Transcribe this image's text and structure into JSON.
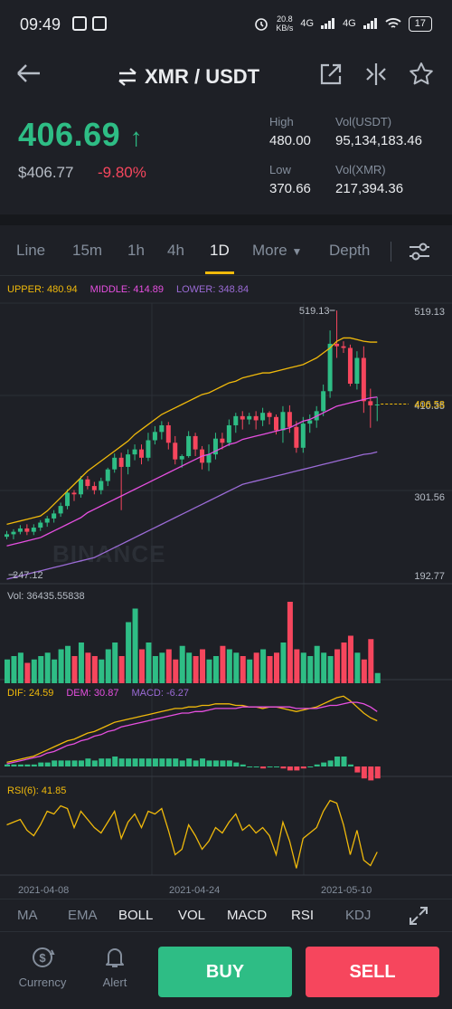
{
  "status_bar": {
    "time": "09:49",
    "net_speed_value": "20.8",
    "net_speed_unit": "KB/s",
    "signal_1": "4G",
    "signal_2": "4G",
    "battery": "17"
  },
  "header": {
    "pair": "XMR / USDT"
  },
  "ticker": {
    "last_price": "406.69",
    "fiat_price": "$406.77",
    "change_pct": "-9.80%",
    "high_label": "High",
    "high": "480.00",
    "vol_usdt_label": "Vol(USDT)",
    "vol_usdt": "95,134,183.46",
    "low_label": "Low",
    "low": "370.66",
    "vol_xmr_label": "Vol(XMR)",
    "vol_xmr": "217,394.36"
  },
  "tabs": {
    "line": "Line",
    "m15": "15m",
    "h1": "1h",
    "h4": "4h",
    "d1": "1D",
    "more": "More",
    "depth": "Depth",
    "active": "1D"
  },
  "boll_legend": {
    "upper": "UPPER: 480.94",
    "middle": "MIDDLE: 414.89",
    "lower": "LOWER: 348.84"
  },
  "price_axis": {
    "top": "519.13",
    "current": "406.58",
    "mid": "410.35",
    "lower": "301.56",
    "bottom": "192.77",
    "max_mark": "519.13",
    "min_mark": "247.12"
  },
  "watermark": "BINANCE",
  "vol_legend": {
    "vol": "Vol: 36435.55838"
  },
  "macd_legend": {
    "dif": "DIF: 24.59",
    "dem": "DEM: 30.87",
    "macd": "MACD: -6.27"
  },
  "rsi_legend": {
    "rsi": "RSI(6): 41.85"
  },
  "dates": {
    "d1": "2021-04-08",
    "d2": "2021-04-24",
    "d3": "2021-05-10"
  },
  "indicators": {
    "ma": "MA",
    "ema": "EMA",
    "boll": "BOLL",
    "vol": "VOL",
    "macd": "MACD",
    "rsi": "RSI",
    "kdj": "KDJ"
  },
  "bottom": {
    "currency": "Currency",
    "alert": "Alert",
    "buy": "BUY",
    "sell": "SELL"
  },
  "colors": {
    "up": "#2ebd85",
    "down": "#f6465d",
    "accent": "#f0b90b",
    "upper": "#f0b90b",
    "middle": "#e64fe0",
    "lower": "#9b6bd6"
  },
  "chart_data": {
    "type": "candlestick",
    "ylim": [
      192.77,
      519.13
    ],
    "current_price": 406.58,
    "candles": [
      [
        247,
        250,
        244,
        254
      ],
      [
        250,
        253,
        244,
        256
      ],
      [
        253,
        257,
        250,
        261
      ],
      [
        257,
        253,
        249,
        262
      ],
      [
        253,
        258,
        249,
        262
      ],
      [
        258,
        264,
        254,
        267
      ],
      [
        264,
        269,
        259,
        272
      ],
      [
        269,
        275,
        264,
        279
      ],
      [
        275,
        284,
        271,
        288
      ],
      [
        284,
        300,
        280,
        304
      ],
      [
        300,
        298,
        290,
        303
      ],
      [
        298,
        316,
        294,
        320
      ],
      [
        316,
        308,
        304,
        320
      ],
      [
        308,
        303,
        298,
        313
      ],
      [
        303,
        314,
        298,
        318
      ],
      [
        314,
        328,
        308,
        330
      ],
      [
        328,
        342,
        324,
        347
      ],
      [
        342,
        331,
        279,
        348
      ],
      [
        331,
        346,
        322,
        352
      ],
      [
        346,
        352,
        339,
        358
      ],
      [
        352,
        342,
        334,
        358
      ],
      [
        342,
        363,
        338,
        372
      ],
      [
        363,
        373,
        358,
        380
      ],
      [
        373,
        381,
        364,
        386
      ],
      [
        381,
        360,
        352,
        385
      ],
      [
        360,
        340,
        334,
        368
      ],
      [
        340,
        344,
        330,
        346
      ],
      [
        344,
        368,
        342,
        374
      ],
      [
        368,
        352,
        344,
        372
      ],
      [
        352,
        336,
        328,
        356
      ],
      [
        336,
        346,
        326,
        358
      ],
      [
        346,
        365,
        340,
        372
      ],
      [
        365,
        360,
        352,
        372
      ],
      [
        360,
        381,
        356,
        388
      ],
      [
        381,
        392,
        372,
        396
      ],
      [
        392,
        388,
        376,
        398
      ],
      [
        388,
        392,
        382,
        396
      ],
      [
        392,
        387,
        376,
        398
      ],
      [
        387,
        396,
        380,
        402
      ],
      [
        396,
        391,
        382,
        398
      ],
      [
        391,
        375,
        370,
        394
      ],
      [
        375,
        397,
        360,
        404
      ],
      [
        397,
        379,
        372,
        405
      ],
      [
        379,
        354,
        348,
        386
      ],
      [
        354,
        383,
        348,
        391
      ],
      [
        383,
        387,
        372,
        394
      ],
      [
        387,
        398,
        378,
        404
      ],
      [
        398,
        422,
        392,
        430
      ],
      [
        422,
        479,
        414,
        495
      ],
      [
        479,
        476,
        462,
        519
      ],
      [
        476,
        474,
        468,
        482
      ],
      [
        474,
        431,
        428,
        478
      ],
      [
        431,
        462,
        424,
        470
      ],
      [
        462,
        410,
        396,
        476
      ],
      [
        410,
        405,
        378,
        425
      ],
      [
        405,
        406,
        386,
        415
      ]
    ],
    "boll_upper": [
      262,
      264,
      266,
      268,
      270,
      272,
      278,
      286,
      294,
      302,
      310,
      318,
      326,
      332,
      338,
      344,
      350,
      356,
      362,
      370,
      376,
      382,
      388,
      394,
      398,
      402,
      406,
      410,
      414,
      418,
      420,
      424,
      428,
      432,
      434,
      438,
      440,
      442,
      444,
      444,
      446,
      448,
      450,
      452,
      454,
      458,
      462,
      468,
      474,
      482,
      486,
      486,
      484,
      482,
      481,
      481
    ],
    "boll_middle": [
      236,
      238,
      240,
      242,
      244,
      246,
      250,
      254,
      258,
      262,
      266,
      270,
      276,
      280,
      284,
      288,
      292,
      296,
      300,
      304,
      308,
      312,
      316,
      320,
      324,
      328,
      332,
      336,
      340,
      344,
      346,
      350,
      354,
      358,
      360,
      364,
      366,
      368,
      370,
      372,
      374,
      376,
      378,
      382,
      386,
      388,
      392,
      396,
      400,
      404,
      406,
      408,
      410,
      412,
      414,
      415
    ],
    "boll_lower": [
      196,
      198,
      200,
      202,
      204,
      206,
      208,
      210,
      212,
      214,
      216,
      218,
      220,
      222,
      226,
      230,
      234,
      238,
      242,
      246,
      250,
      254,
      258,
      262,
      266,
      270,
      274,
      278,
      282,
      286,
      290,
      294,
      298,
      302,
      306,
      310,
      312,
      314,
      316,
      318,
      320,
      322,
      324,
      326,
      328,
      330,
      332,
      334,
      336,
      338,
      340,
      342,
      344,
      346,
      347,
      349
    ],
    "volume": [
      7,
      8,
      9,
      6,
      7,
      8,
      9,
      7,
      10,
      11,
      8,
      12,
      9,
      8,
      7,
      10,
      12,
      8,
      18,
      22,
      10,
      12,
      8,
      9,
      10,
      7,
      11,
      9,
      8,
      10,
      7,
      8,
      11,
      10,
      9,
      8,
      7,
      9,
      10,
      8,
      9,
      12,
      24,
      10,
      9,
      8,
      11,
      9,
      8,
      10,
      12,
      14,
      9,
      7,
      13,
      3
    ],
    "dif": [
      -2,
      -1,
      0,
      1,
      2,
      4,
      6,
      8,
      10,
      12,
      13,
      15,
      17,
      18,
      20,
      22,
      24,
      25,
      26,
      27,
      28,
      29,
      30,
      31,
      32,
      33,
      33,
      34,
      34,
      35,
      35,
      36,
      36,
      36,
      35,
      35,
      34,
      34,
      33,
      34,
      34,
      33,
      32,
      31,
      32,
      33,
      34,
      36,
      38,
      40,
      41,
      38,
      34,
      30,
      27,
      25
    ],
    "dem": [
      -3,
      -2,
      -1,
      0,
      1,
      2,
      4,
      5,
      7,
      9,
      10,
      12,
      13,
      15,
      16,
      18,
      19,
      21,
      22,
      23,
      24,
      25,
      26,
      27,
      28,
      29,
      30,
      30,
      31,
      31,
      32,
      33,
      33,
      33,
      33,
      34,
      34,
      34,
      34,
      34,
      34,
      34,
      34,
      33,
      33,
      33,
      33,
      34,
      35,
      35,
      36,
      37,
      37,
      36,
      34,
      31
    ],
    "rsi": [
      62,
      64,
      66,
      58,
      54,
      62,
      72,
      70,
      76,
      74,
      60,
      72,
      66,
      60,
      56,
      64,
      72,
      52,
      64,
      70,
      60,
      72,
      70,
      74,
      58,
      40,
      44,
      62,
      54,
      44,
      50,
      60,
      56,
      64,
      70,
      58,
      62,
      56,
      60,
      54,
      40,
      64,
      50,
      30,
      52,
      56,
      60,
      72,
      80,
      78,
      62,
      40,
      58,
      36,
      32,
      42
    ]
  }
}
